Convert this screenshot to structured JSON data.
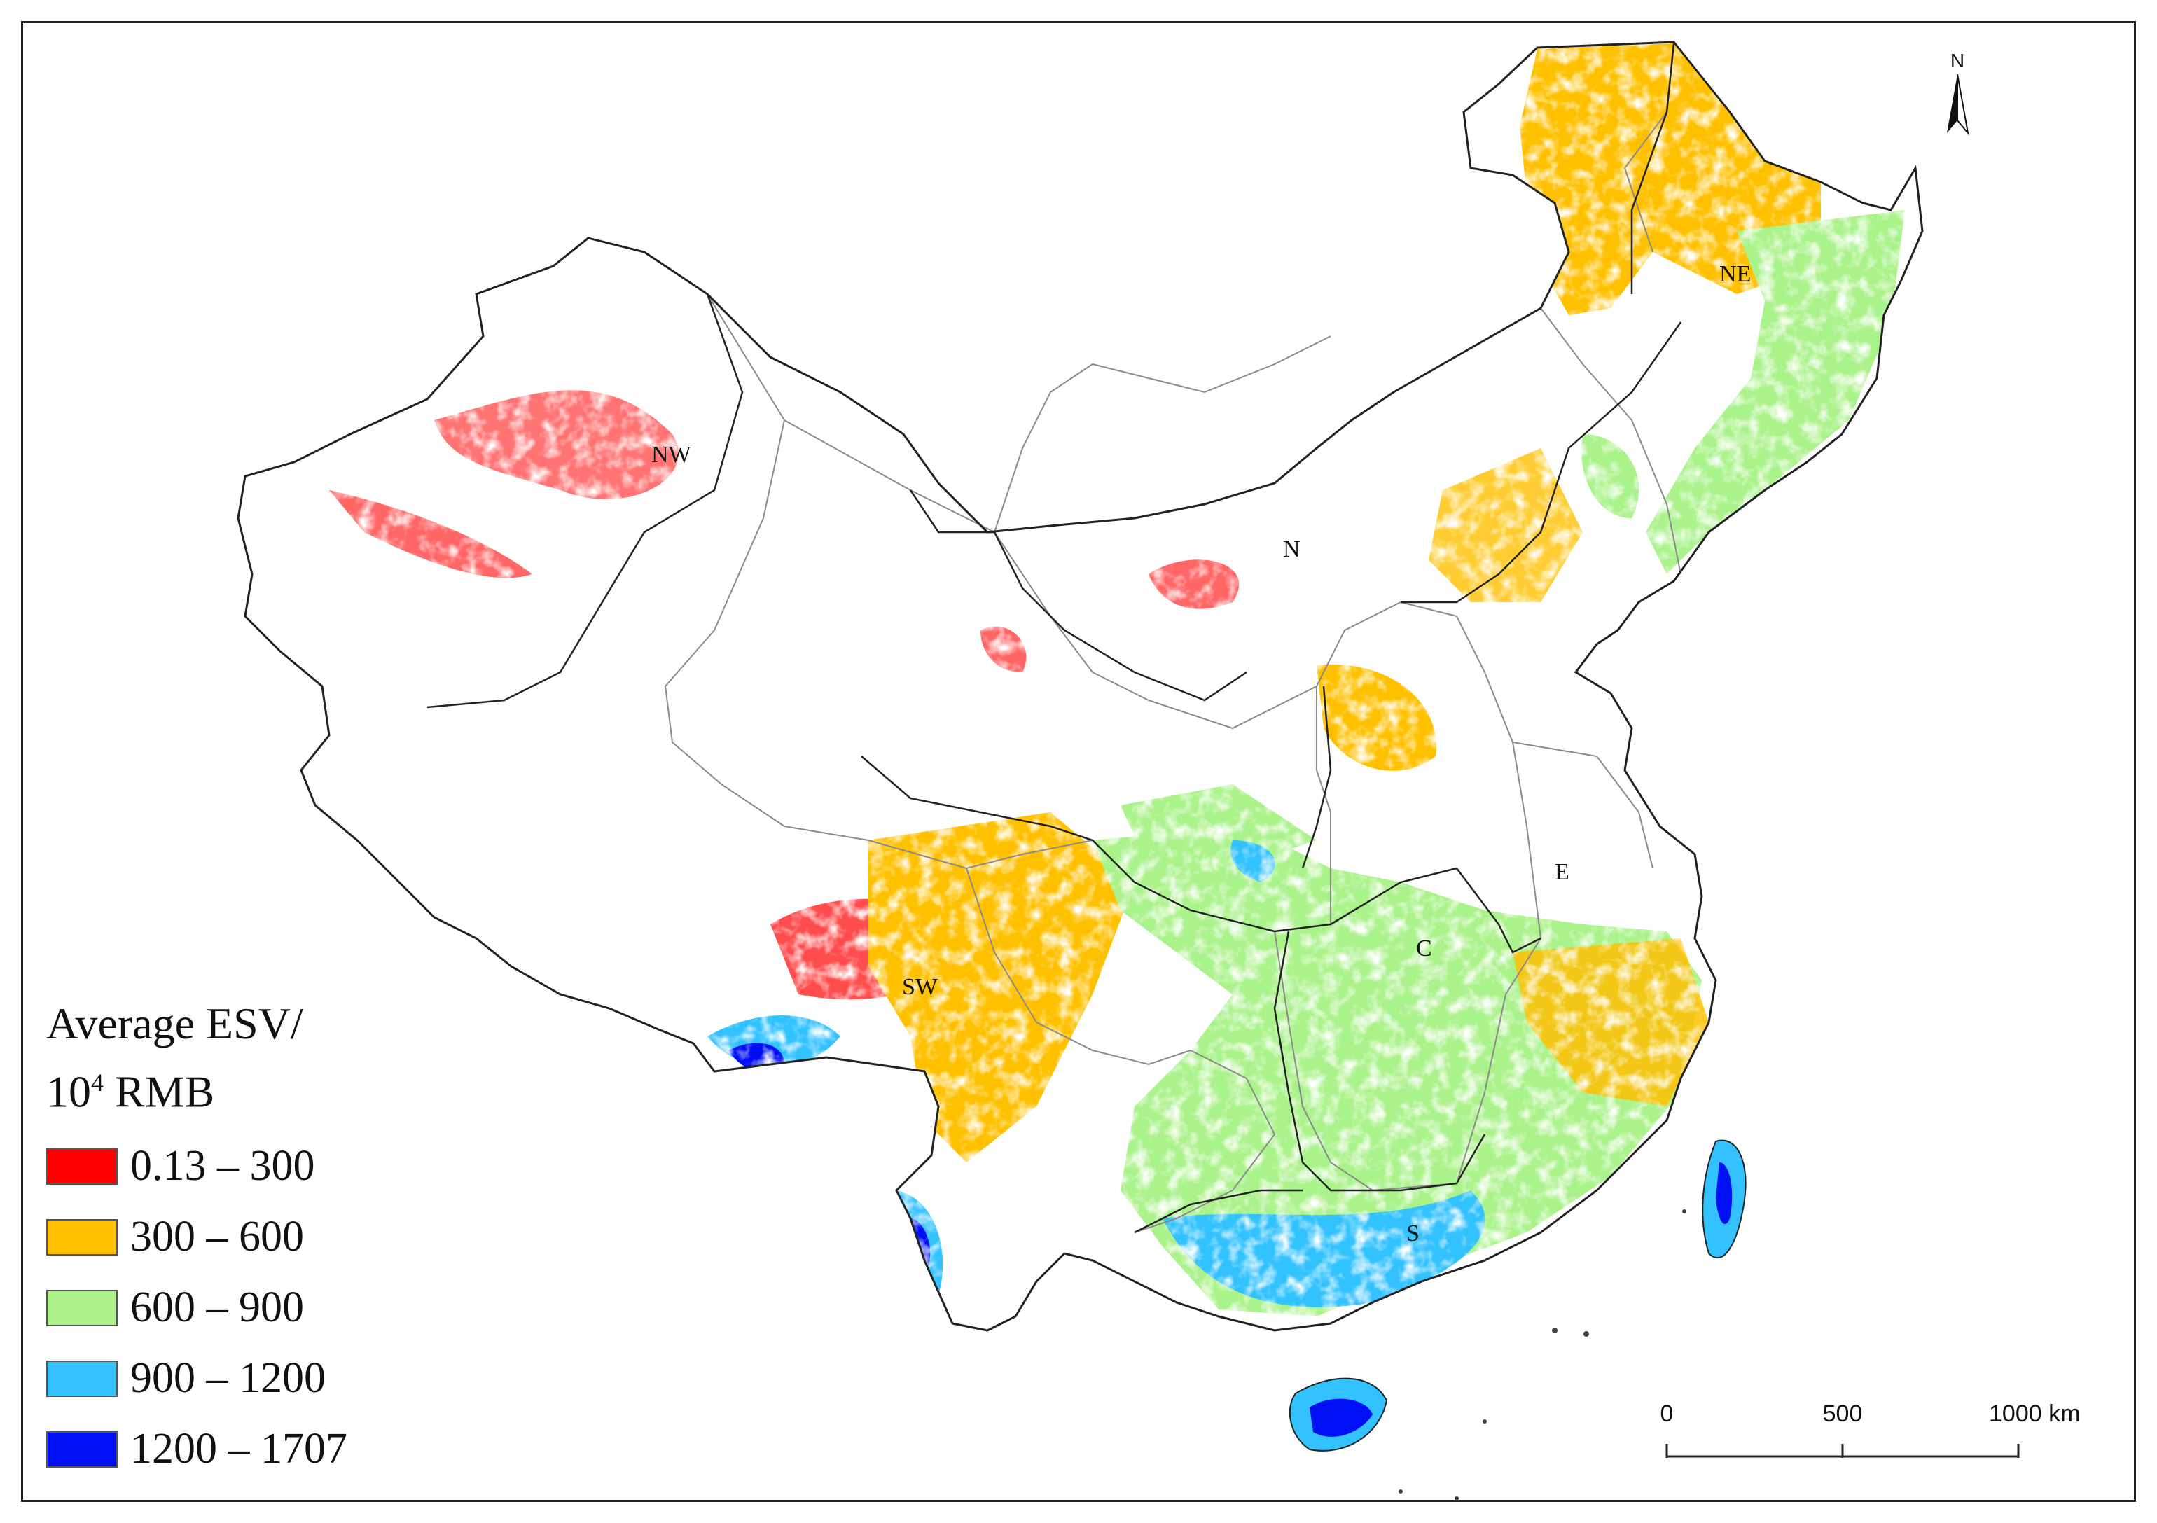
{
  "regions": {
    "nw": "NW",
    "ne": "NE",
    "n": "N",
    "e": "E",
    "c": "C",
    "sw": "SW",
    "s": "S"
  },
  "legend": {
    "title_line1": "Average  ESV/",
    "title_base": "10",
    "title_exp": "4",
    "title_unit": " RMB",
    "items": [
      {
        "label": "0.13 – 300",
        "color": "#ff0000"
      },
      {
        "label": "300 – 600",
        "color": "#ffc000"
      },
      {
        "label": "600 – 900",
        "color": "#aaf28a"
      },
      {
        "label": "900 – 1200",
        "color": "#33c2ff"
      },
      {
        "label": "1200 – 1707",
        "color": "#0010f5"
      }
    ]
  },
  "scale_bar": {
    "ticks": [
      "0",
      "500",
      "1000 km"
    ]
  },
  "north_arrow": {
    "label": "N"
  },
  "colors": {
    "boundary": "#222222",
    "province_boundary": "#8a8a8a"
  }
}
